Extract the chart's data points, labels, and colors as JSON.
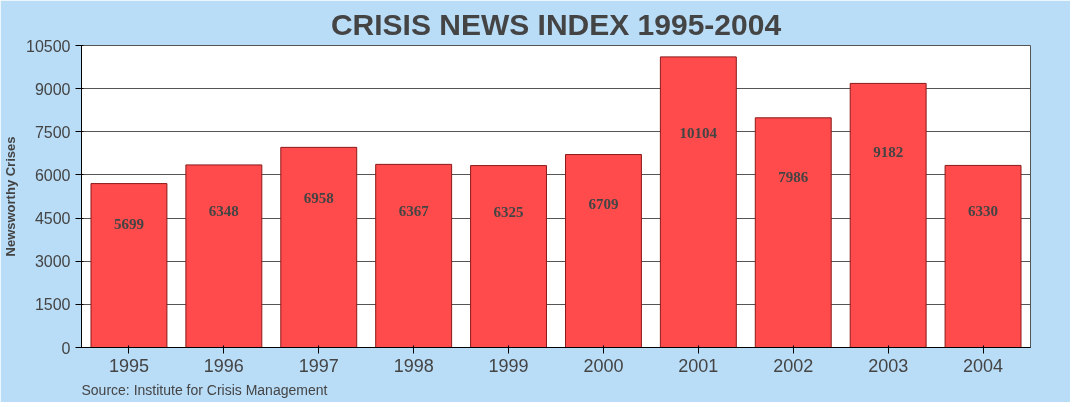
{
  "chart_data": {
    "type": "bar",
    "title": "CRISIS NEWS INDEX 1995-2004",
    "ylabel": "Newsworthy Crises",
    "categories": [
      "1995",
      "1996",
      "1997",
      "1998",
      "1999",
      "2000",
      "2001",
      "2002",
      "2003",
      "2004"
    ],
    "values": [
      5699,
      6348,
      6958,
      6367,
      6325,
      6709,
      10104,
      7986,
      9182,
      6330
    ],
    "color": "#ff4b4b",
    "data_labels": true,
    "ylim": [
      0,
      10500
    ],
    "yticks": [
      0,
      1500,
      3000,
      4500,
      6000,
      7500,
      9000,
      10500
    ],
    "grid": "y",
    "annotations": [
      "Source: Institute for Crisis Management"
    ]
  }
}
